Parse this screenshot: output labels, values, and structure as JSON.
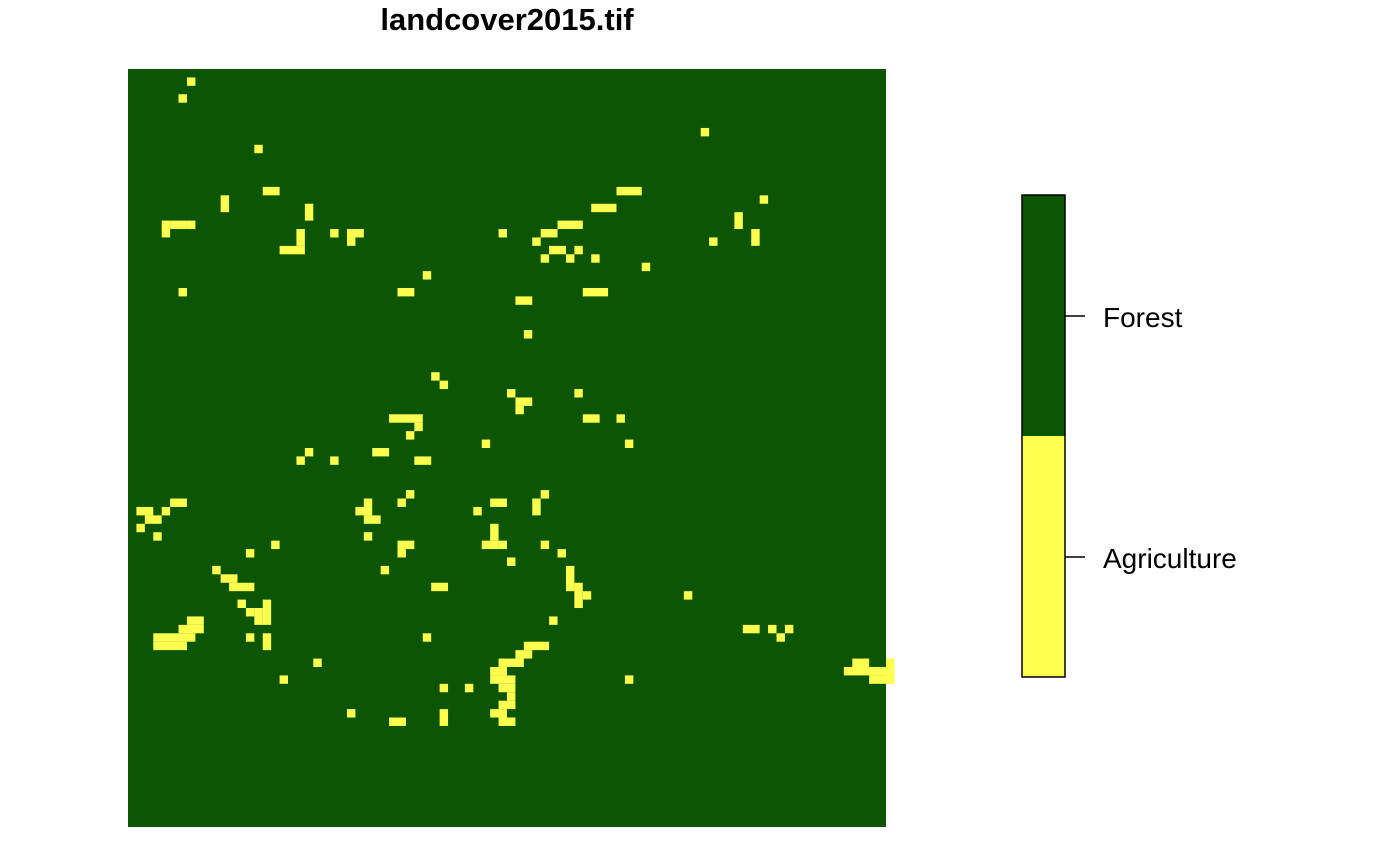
{
  "chart_data": {
    "type": "heatmap",
    "title": "landcover2015.tif",
    "grid": false,
    "background_class": "Forest",
    "legend": {
      "placement": "right",
      "entries": [
        {
          "label": "Forest",
          "color": "#0B5503"
        },
        {
          "label": "Agriculture",
          "color": "#FFFF4F"
        }
      ]
    },
    "agriculture_patches_cell_index": [
      [
        7,
        1,
        1,
        1
      ],
      [
        6,
        3,
        1,
        1
      ],
      [
        15,
        9,
        1,
        1
      ],
      [
        16,
        14,
        2,
        1
      ],
      [
        11,
        15,
        1,
        2
      ],
      [
        21,
        16,
        1,
        2
      ],
      [
        4,
        18,
        1,
        2
      ],
      [
        5,
        18,
        2,
        1
      ],
      [
        7,
        18,
        1,
        1
      ],
      [
        20,
        19,
        1,
        2
      ],
      [
        24,
        19,
        1,
        1
      ],
      [
        26,
        19,
        2,
        1
      ],
      [
        18,
        21,
        3,
        1
      ],
      [
        26,
        20,
        1,
        1
      ],
      [
        6,
        26,
        1,
        1
      ],
      [
        35,
        24,
        1,
        1
      ],
      [
        32,
        26,
        2,
        1
      ],
      [
        68,
        7,
        1,
        1
      ],
      [
        58,
        14,
        3,
        1
      ],
      [
        75,
        15,
        1,
        1
      ],
      [
        55,
        16,
        3,
        1
      ],
      [
        72,
        17,
        1,
        2
      ],
      [
        74,
        19,
        1,
        2
      ],
      [
        69,
        20,
        1,
        1
      ],
      [
        49,
        22,
        1,
        1
      ],
      [
        49,
        19,
        2,
        1
      ],
      [
        51,
        18,
        3,
        1
      ],
      [
        48,
        20,
        1,
        1
      ],
      [
        50,
        21,
        2,
        1
      ],
      [
        53,
        21,
        1,
        1
      ],
      [
        52,
        22,
        1,
        1
      ],
      [
        55,
        22,
        1,
        1
      ],
      [
        61,
        23,
        1,
        1
      ],
      [
        46,
        27,
        2,
        1
      ],
      [
        54,
        26,
        3,
        1
      ],
      [
        44,
        19,
        1,
        1
      ],
      [
        47,
        31,
        1,
        1
      ],
      [
        36,
        36,
        1,
        1
      ],
      [
        37,
        37,
        1,
        1
      ],
      [
        45,
        38,
        1,
        1
      ],
      [
        53,
        38,
        1,
        1
      ],
      [
        46,
        39,
        2,
        1
      ],
      [
        46,
        40,
        1,
        1
      ],
      [
        54,
        41,
        2,
        1
      ],
      [
        58,
        41,
        1,
        1
      ],
      [
        31,
        41,
        4,
        1
      ],
      [
        34,
        42,
        1,
        1
      ],
      [
        33,
        43,
        1,
        1
      ],
      [
        42,
        44,
        1,
        1
      ],
      [
        59,
        44,
        1,
        1
      ],
      [
        21,
        45,
        1,
        1
      ],
      [
        20,
        46,
        1,
        1
      ],
      [
        24,
        46,
        1,
        1
      ],
      [
        29,
        45,
        2,
        1
      ],
      [
        34,
        46,
        2,
        1
      ],
      [
        33,
        50,
        1,
        1
      ],
      [
        32,
        51,
        1,
        1
      ],
      [
        43,
        51,
        2,
        1
      ],
      [
        1,
        52,
        2,
        1
      ],
      [
        2,
        53,
        2,
        1
      ],
      [
        1,
        54,
        1,
        1
      ],
      [
        3,
        55,
        1,
        1
      ],
      [
        4,
        52,
        1,
        1
      ],
      [
        5,
        51,
        2,
        1
      ],
      [
        27,
        52,
        2,
        1
      ],
      [
        28,
        51,
        1,
        1
      ],
      [
        28,
        53,
        2,
        1
      ],
      [
        28,
        55,
        1,
        1
      ],
      [
        41,
        52,
        1,
        1
      ],
      [
        48,
        51,
        1,
        2
      ],
      [
        49,
        50,
        1,
        1
      ],
      [
        43,
        54,
        1,
        2
      ],
      [
        44,
        56,
        1,
        1
      ],
      [
        49,
        56,
        1,
        1
      ],
      [
        51,
        57,
        1,
        1
      ],
      [
        45,
        58,
        1,
        1
      ],
      [
        32,
        56,
        2,
        1
      ],
      [
        32,
        57,
        1,
        1
      ],
      [
        14,
        57,
        1,
        1
      ],
      [
        17,
        56,
        1,
        1
      ],
      [
        30,
        59,
        1,
        1
      ],
      [
        10,
        59,
        1,
        1
      ],
      [
        11,
        60,
        2,
        1
      ],
      [
        12,
        61,
        3,
        1
      ],
      [
        36,
        61,
        2,
        1
      ],
      [
        42,
        56,
        2,
        1
      ],
      [
        52,
        59,
        1,
        3
      ],
      [
        53,
        61,
        1,
        3
      ],
      [
        54,
        62,
        1,
        1
      ],
      [
        66,
        62,
        1,
        1
      ],
      [
        13,
        63,
        1,
        1
      ],
      [
        14,
        64,
        1,
        1
      ],
      [
        15,
        64,
        1,
        2
      ],
      [
        16,
        63,
        1,
        3
      ],
      [
        7,
        65,
        2,
        1
      ],
      [
        6,
        66,
        3,
        1
      ],
      [
        3,
        67,
        5,
        1
      ],
      [
        3,
        68,
        4,
        1
      ],
      [
        14,
        67,
        1,
        1
      ],
      [
        16,
        67,
        1,
        2
      ],
      [
        35,
        67,
        1,
        1
      ],
      [
        50,
        65,
        1,
        1
      ],
      [
        73,
        66,
        2,
        1
      ],
      [
        76,
        66,
        1,
        1
      ],
      [
        77,
        67,
        1,
        1
      ],
      [
        78,
        66,
        1,
        1
      ],
      [
        46,
        69,
        2,
        1
      ],
      [
        47,
        68,
        3,
        1
      ],
      [
        44,
        70,
        3,
        1
      ],
      [
        43,
        71,
        2,
        1
      ],
      [
        43,
        72,
        3,
        1
      ],
      [
        44,
        73,
        2,
        1
      ],
      [
        45,
        74,
        1,
        1
      ],
      [
        44,
        75,
        2,
        1
      ],
      [
        43,
        76,
        2,
        1
      ],
      [
        44,
        77,
        2,
        1
      ],
      [
        18,
        72,
        1,
        1
      ],
      [
        22,
        70,
        1,
        1
      ],
      [
        40,
        73,
        1,
        1
      ],
      [
        37,
        73,
        1,
        1
      ],
      [
        26,
        76,
        1,
        1
      ],
      [
        31,
        77,
        2,
        1
      ],
      [
        37,
        76,
        1,
        2
      ],
      [
        59,
        72,
        1,
        1
      ],
      [
        86,
        70,
        2,
        1
      ],
      [
        85,
        71,
        5,
        1
      ],
      [
        88,
        72,
        2,
        1
      ],
      [
        90,
        70,
        1,
        3
      ]
    ]
  }
}
